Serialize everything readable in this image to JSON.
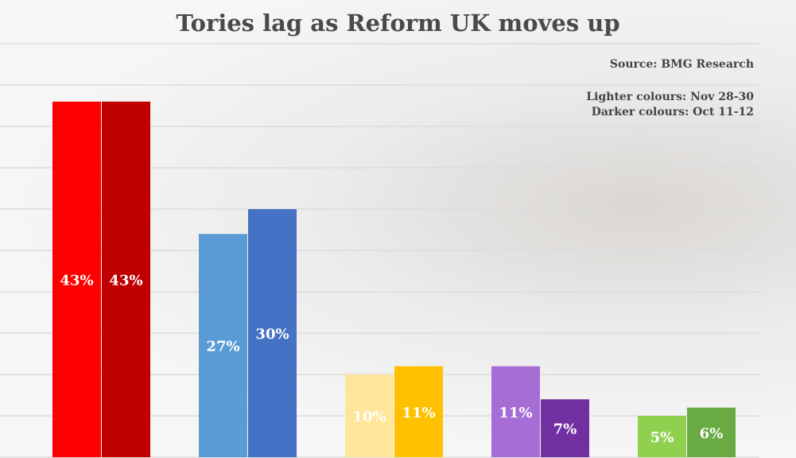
{
  "title": "Tories lag as Reform UK moves up",
  "source": "Source: BMG Research",
  "legend": {
    "lighter": "Lighter colours: Nov 28-30",
    "darker": "Darker colours: Oct 11-12"
  },
  "chart_data": {
    "type": "bar",
    "title": "Tories lag as Reform UK moves up",
    "xlabel": "",
    "ylabel": "",
    "ylim": [
      0,
      50
    ],
    "grid": true,
    "categories": [
      "",
      "",
      "",
      "",
      ""
    ],
    "series": [
      {
        "name": "Nov 28-30",
        "values": [
          43,
          27,
          10,
          11,
          5
        ],
        "labels": [
          "43%",
          "27%",
          "10%",
          "11%",
          "5%"
        ],
        "colors": [
          "#ff0000",
          "#5b9bd5",
          "#ffe699",
          "#a66dd4",
          "#8fd14f"
        ]
      },
      {
        "name": "Oct 11-12",
        "values": [
          43,
          30,
          11,
          7,
          6
        ],
        "labels": [
          "43%",
          "30%",
          "11%",
          "7%",
          "6%"
        ],
        "colors": [
          "#c00000",
          "#4472c4",
          "#ffc000",
          "#7030a0",
          "#6aaa43"
        ]
      }
    ]
  }
}
